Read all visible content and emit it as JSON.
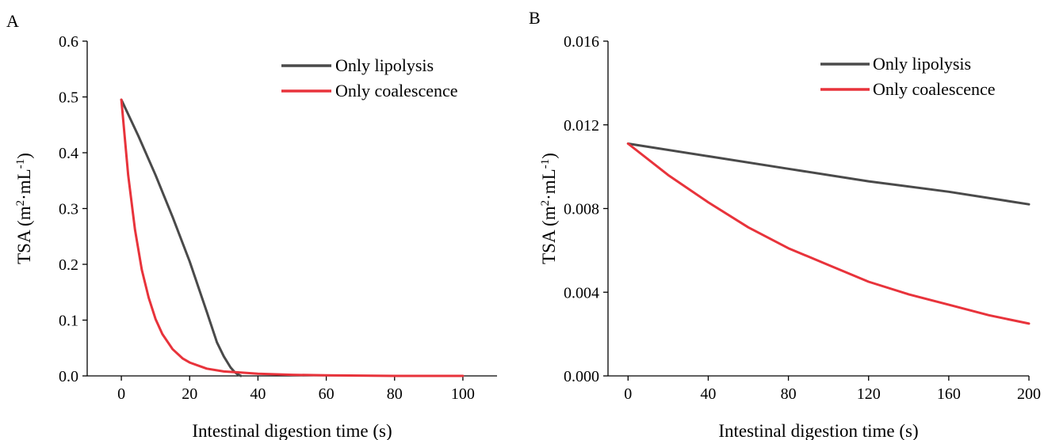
{
  "chart_data": [
    {
      "panel_label": "A",
      "type": "line",
      "xlabel": "Intestinal digestion time (s)",
      "ylabel": {
        "prefix": "TSA (m",
        "sup1": "2",
        "middle": "·mL",
        "sup2": "-1",
        "suffix": ")"
      },
      "xlim": [
        -10,
        110
      ],
      "ylim": [
        0,
        0.6
      ],
      "xticks": [
        0,
        20,
        40,
        60,
        80,
        100
      ],
      "xtick_labels": [
        "0",
        "20",
        "40",
        "60",
        "80",
        "100"
      ],
      "yticks": [
        0,
        0.1,
        0.2,
        0.3,
        0.4,
        0.5,
        0.6
      ],
      "ytick_labels": [
        "0.0",
        "0.1",
        "0.2",
        "0.3",
        "0.4",
        "0.5",
        "0.6"
      ],
      "grid": false,
      "legend_position": "top-right",
      "series": [
        {
          "name": "Only lipolysis",
          "color": "#4a4a4a",
          "x": [
            0,
            5,
            10,
            15,
            20,
            25,
            28,
            30,
            32,
            33,
            34,
            35
          ],
          "y": [
            0.495,
            0.43,
            0.36,
            0.285,
            0.205,
            0.115,
            0.06,
            0.035,
            0.015,
            0.008,
            0.003,
            0.0
          ]
        },
        {
          "name": "Only coalescence",
          "color": "#e8333b",
          "x": [
            0,
            2,
            4,
            6,
            8,
            10,
            12,
            15,
            18,
            20,
            25,
            30,
            35,
            40,
            50,
            60,
            80,
            100
          ],
          "y": [
            0.495,
            0.36,
            0.262,
            0.19,
            0.14,
            0.102,
            0.075,
            0.048,
            0.031,
            0.024,
            0.013,
            0.008,
            0.006,
            0.004,
            0.002,
            0.001,
            0.0,
            0.0
          ]
        }
      ]
    },
    {
      "panel_label": "B",
      "type": "line",
      "xlabel": "Intestinal digestion time (s)",
      "ylabel": {
        "prefix": "TSA (m",
        "sup1": "2",
        "middle": "·mL",
        "sup2": "-1",
        "suffix": ")"
      },
      "xlim": [
        -10,
        200
      ],
      "ylim": [
        0,
        0.016
      ],
      "xticks": [
        0,
        40,
        80,
        120,
        160,
        200
      ],
      "xtick_labels": [
        "0",
        "40",
        "80",
        "120",
        "160",
        "200"
      ],
      "yticks": [
        0,
        0.004,
        0.008,
        0.012,
        0.016
      ],
      "ytick_labels": [
        "0.000",
        "0.004",
        "0.008",
        "0.012",
        "0.016"
      ],
      "grid": false,
      "legend_position": "top-right",
      "series": [
        {
          "name": "Only lipolysis",
          "color": "#4a4a4a",
          "x": [
            0,
            40,
            80,
            120,
            160,
            200
          ],
          "y": [
            0.0111,
            0.0105,
            0.0099,
            0.0093,
            0.0088,
            0.0082
          ]
        },
        {
          "name": "Only coalescence",
          "color": "#e8333b",
          "x": [
            0,
            20,
            40,
            60,
            80,
            100,
            120,
            140,
            160,
            180,
            200
          ],
          "y": [
            0.0111,
            0.0096,
            0.0083,
            0.0071,
            0.0061,
            0.0053,
            0.0045,
            0.0039,
            0.0034,
            0.0029,
            0.0025
          ]
        }
      ]
    }
  ]
}
